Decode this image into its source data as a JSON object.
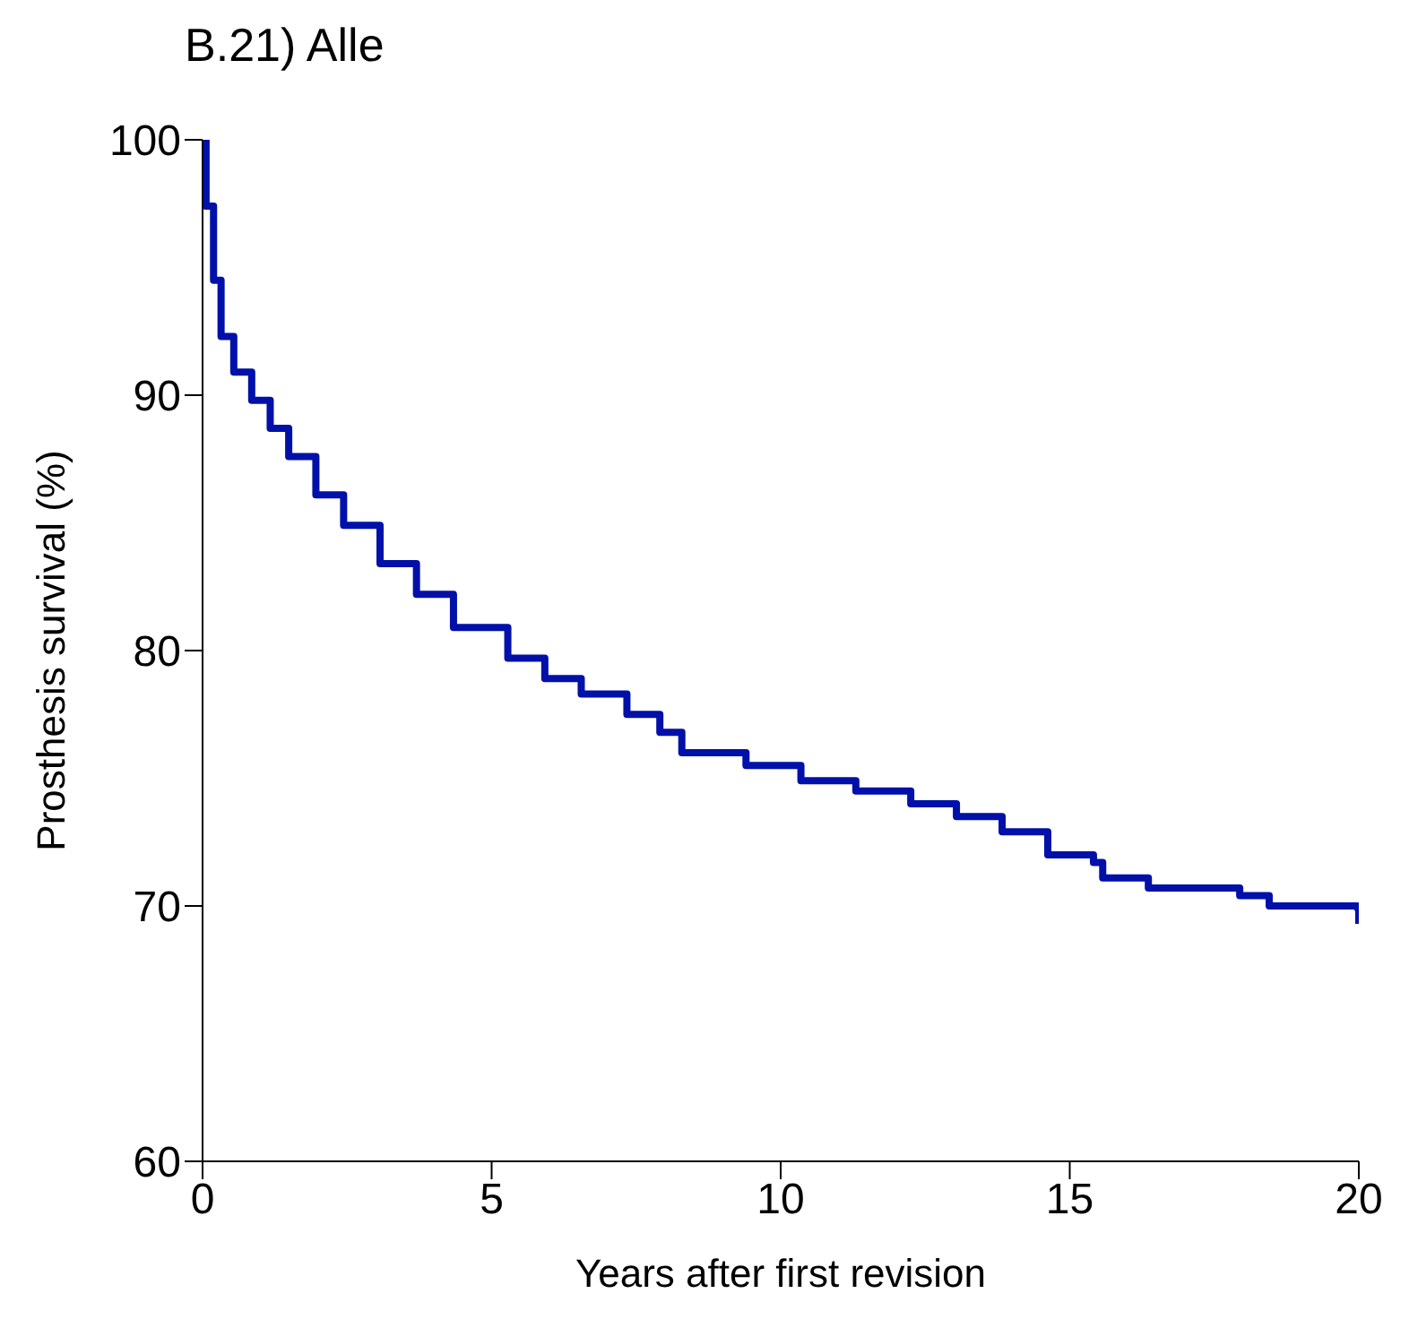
{
  "chart_data": {
    "type": "step",
    "title": "B.21) Alle",
    "xlabel": "Years after first revision",
    "ylabel": "Prosthesis survival (%)",
    "x": [
      0,
      0.06,
      0.19,
      0.32,
      0.54,
      0.85,
      1.17,
      1.49,
      1.96,
      2.44,
      3.07,
      3.7,
      4.34,
      5.28,
      5.92,
      6.55,
      7.34,
      7.91,
      8.29,
      9.4,
      10.35,
      11.3,
      12.25,
      13.04,
      13.83,
      14.62,
      15.41,
      15.57,
      16.36,
      17.94,
      18.45,
      19.98,
      20
    ],
    "series": [
      {
        "color": "#0010a8",
        "values": [
          100,
          97.4,
          94.5,
          92.3,
          90.9,
          89.8,
          88.7,
          87.6,
          86.1,
          84.9,
          83.4,
          82.2,
          80.9,
          79.7,
          78.9,
          78.3,
          77.5,
          76.8,
          76,
          75.5,
          74.9,
          74.5,
          74,
          73.5,
          72.9,
          72,
          71.7,
          71.1,
          70.7,
          70.4,
          70,
          69.9,
          69.3
        ]
      }
    ],
    "xlim": [
      0,
      20
    ],
    "xticks": [
      0,
      5,
      10,
      15,
      20
    ],
    "ylim": [
      60,
      100
    ],
    "yticks": [
      60,
      70,
      80,
      90,
      100
    ],
    "grid": false,
    "legend": false,
    "marker": "none",
    "line_style": "solid"
  }
}
